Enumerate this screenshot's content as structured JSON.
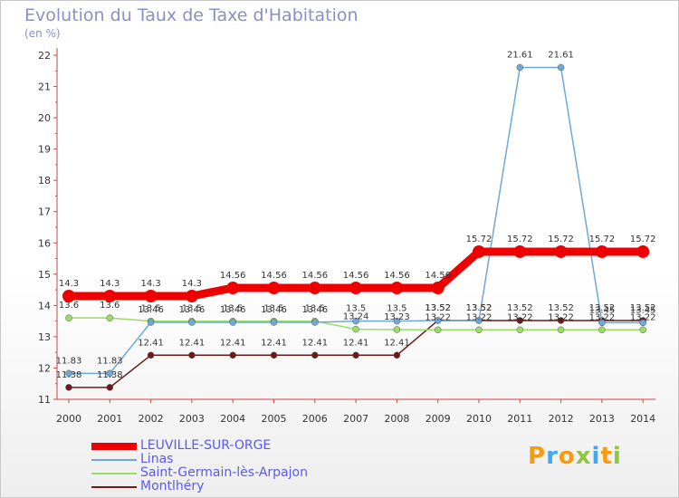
{
  "title": "Evolution du Taux de Taxe d'Habitation",
  "unit": "(en %)",
  "logo_text": "Proxiti",
  "chart_data": {
    "type": "line",
    "x": [
      "2000",
      "2001",
      "2002",
      "2003",
      "2004",
      "2005",
      "2006",
      "2007",
      "2008",
      "2009",
      "2010",
      "2011",
      "2012",
      "2013",
      "2014"
    ],
    "ylim": [
      11,
      22
    ],
    "yticks": [
      "11",
      "12",
      "13",
      "14",
      "15",
      "16",
      "17",
      "18",
      "19",
      "20",
      "21",
      "22"
    ],
    "grid": false,
    "legend_position": "bottom-left",
    "series": [
      {
        "name": "LEUVILLE-SUR-ORGE",
        "color": "#ee0000",
        "values": [
          14.3,
          14.3,
          14.3,
          14.3,
          14.56,
          14.56,
          14.56,
          14.56,
          14.56,
          14.56,
          15.72,
          15.72,
          15.72,
          15.72,
          15.72
        ],
        "labels": [
          "14.3",
          "14.3",
          "14.3",
          "14.3",
          "14.56",
          "14.56",
          "14.56",
          "14.56",
          "14.56",
          "14.56",
          "15.72",
          "15.72",
          "15.72",
          "15.72",
          "15.72"
        ]
      },
      {
        "name": "Linas",
        "color": "#6fa8d8",
        "values": [
          11.83,
          11.83,
          13.46,
          13.46,
          13.46,
          13.46,
          13.46,
          13.5,
          13.5,
          13.52,
          13.52,
          21.61,
          21.61,
          13.45,
          13.45
        ],
        "labels": [
          "11.83",
          "11.83",
          "13.46",
          "13.46",
          "13.46",
          "13.46",
          "13.46",
          "13.5",
          "13.5",
          "13.52",
          "13.52",
          "21.61",
          "21.61",
          "13.45",
          "13.45"
        ]
      },
      {
        "name": "Saint-Germain-lès-Arpajon",
        "color": "#99dd66",
        "values": [
          13.6,
          13.6,
          13.5,
          13.5,
          13.5,
          13.5,
          13.5,
          13.24,
          13.23,
          13.22,
          13.22,
          13.22,
          13.22,
          13.22,
          13.22
        ],
        "labels": [
          "13.6",
          "13.6",
          "13.5",
          "13.5",
          "13.5",
          "13.5",
          "13.5",
          "13.24",
          "13.23",
          "13.22",
          "13.22",
          "13.22",
          "13.22",
          "13.22",
          "13.22"
        ]
      },
      {
        "name": "Montlhéry",
        "color": "#6b1a1a",
        "values": [
          11.38,
          11.38,
          12.41,
          12.41,
          12.41,
          12.41,
          12.41,
          12.41,
          12.41,
          13.52,
          13.52,
          13.52,
          13.52,
          13.52,
          13.52
        ],
        "labels": [
          "11.38",
          "11.38",
          "12.41",
          "12.41",
          "12.41",
          "12.41",
          "12.41",
          "12.41",
          "12.41",
          "13.52",
          "13.52",
          "13.52",
          "13.52",
          "13.52",
          "13.52"
        ]
      }
    ]
  }
}
